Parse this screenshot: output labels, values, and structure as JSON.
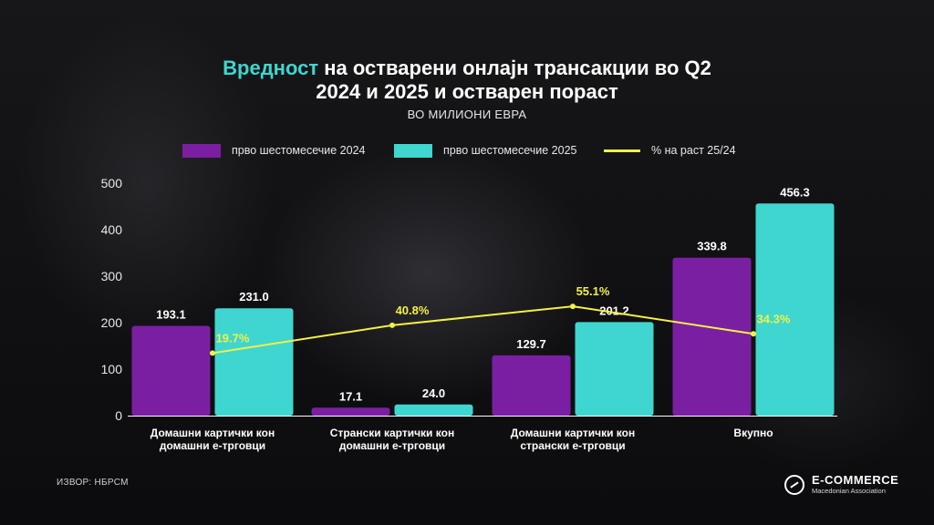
{
  "header": {
    "title_accent": "Вредност",
    "title_line1_rest": " на остварени онлајн трансакции во Q2",
    "title_line2": "2024 и 2025 и остварен пораст",
    "subtitle": "ВО МИЛИОНИ ЕВРА"
  },
  "colors": {
    "series_2024": "#7b1fa2",
    "series_2025": "#3fd6cf",
    "growth_line": "#f3f047",
    "growth_label": "#f3f047"
  },
  "chart_data": {
    "type": "bar",
    "categories": [
      [
        "Домашни картички кон",
        "домашни е-трговци"
      ],
      [
        "Странски картички кон",
        "домашни е-трговци"
      ],
      [
        "Домашни картички кон",
        "странски е-трговци"
      ],
      [
        "Вкупно"
      ]
    ],
    "series": [
      {
        "name": "прво шестомесечие 2024",
        "values": [
          193.1,
          17.1,
          129.7,
          339.8
        ],
        "labels": [
          "193.1",
          "17.1",
          "129.7",
          "339.8"
        ]
      },
      {
        "name": "прво шестомесечие 2025",
        "values": [
          231.0,
          24.0,
          201.2,
          456.3
        ],
        "labels": [
          "231.0",
          "24.0",
          "201.2",
          "456.3"
        ]
      }
    ],
    "line_series": {
      "name": "% на раст 25/24",
      "values": [
        19.7,
        40.8,
        55.1,
        34.3
      ],
      "labels": [
        "19.7%",
        "40.8%",
        "55.1%",
        "34.3%"
      ]
    },
    "ylim": [
      0,
      500
    ],
    "yticks": [
      "0",
      "100",
      "200",
      "300",
      "400",
      "500"
    ],
    "legend_position": "top"
  },
  "footer": {
    "source": "ИЗВОР: НБРСМ",
    "logo_name": "E-COMMERCE",
    "logo_sub": "Macedonian Association"
  },
  "icons": {
    "logo": "ecommerce-logo-icon"
  }
}
